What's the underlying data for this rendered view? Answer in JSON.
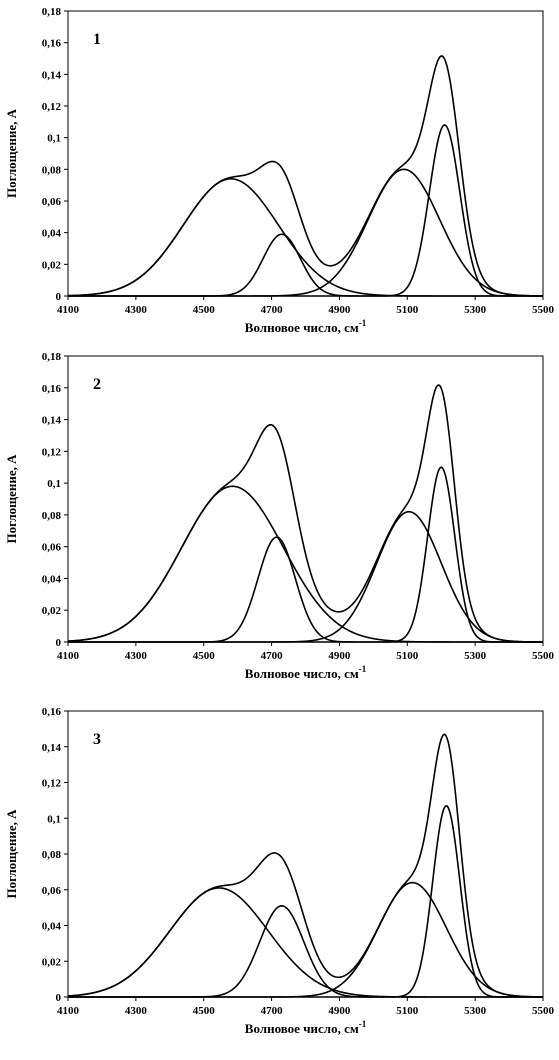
{
  "chart_data": [
    {
      "type": "line",
      "panel_label": "1",
      "xlabel": "Волновое число, см",
      "xlabel_sup": "-1",
      "ylabel": "Поглощение, A",
      "xlim": [
        4100,
        5500
      ],
      "ylim": [
        0,
        0.18
      ],
      "x_ticks": [
        "4100",
        "4300",
        "4500",
        "4700",
        "4900",
        "5100",
        "5300",
        "5500"
      ],
      "y_ticks": [
        "0",
        "0,02",
        "0,04",
        "0,06",
        "0,08",
        "0,1",
        "0,12",
        "0,14",
        "0,16",
        "0,18"
      ],
      "components": [
        {
          "center": 4580,
          "amplitude": 0.074,
          "sigma": 140
        },
        {
          "center": 4730,
          "amplitude": 0.039,
          "sigma": 55
        },
        {
          "center": 5090,
          "amplitude": 0.08,
          "sigma": 105
        },
        {
          "center": 5210,
          "amplitude": 0.108,
          "sigma": 45
        }
      ]
    },
    {
      "type": "line",
      "panel_label": "2",
      "xlabel": "Волновое число, см",
      "xlabel_sup": "-1",
      "ylabel": "Поглощение, A",
      "xlim": [
        4100,
        5500
      ],
      "ylim": [
        0,
        0.18
      ],
      "x_ticks": [
        "4100",
        "4300",
        "4500",
        "4700",
        "4900",
        "5100",
        "5300",
        "5500"
      ],
      "y_ticks": [
        "0",
        "0,02",
        "0,04",
        "0,06",
        "0,08",
        "0,1",
        "0,12",
        "0,14",
        "0,16",
        "0,18"
      ],
      "components": [
        {
          "center": 4585,
          "amplitude": 0.098,
          "sigma": 150
        },
        {
          "center": 4715,
          "amplitude": 0.066,
          "sigma": 55
        },
        {
          "center": 5105,
          "amplitude": 0.082,
          "sigma": 95
        },
        {
          "center": 5200,
          "amplitude": 0.11,
          "sigma": 40
        }
      ]
    },
    {
      "type": "line",
      "panel_label": "3",
      "xlabel": "Волновое число, см",
      "xlabel_sup": "-1",
      "ylabel": "Поглощение, A",
      "xlim": [
        4100,
        5500
      ],
      "ylim": [
        0,
        0.16
      ],
      "x_ticks": [
        "4100",
        "4300",
        "4500",
        "4700",
        "4900",
        "5100",
        "5300",
        "5500"
      ],
      "y_ticks": [
        "0",
        "0,02",
        "0,04",
        "0,06",
        "0,08",
        "0,1",
        "0,12",
        "0,14",
        "0,16"
      ],
      "components": [
        {
          "center": 4545,
          "amplitude": 0.061,
          "sigma": 145
        },
        {
          "center": 4730,
          "amplitude": 0.051,
          "sigma": 65
        },
        {
          "center": 5115,
          "amplitude": 0.064,
          "sigma": 100
        },
        {
          "center": 5215,
          "amplitude": 0.107,
          "sigma": 40
        }
      ]
    }
  ]
}
